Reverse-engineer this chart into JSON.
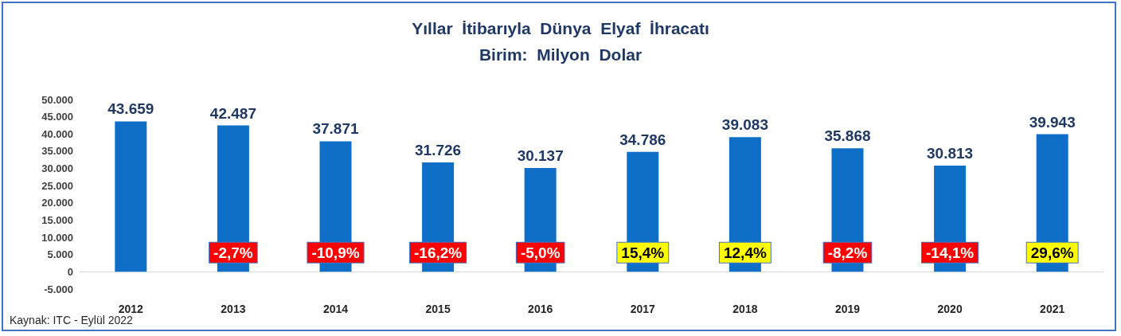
{
  "chart_data": {
    "type": "bar",
    "title": "Yıllar  İtibarıyla  Dünya  Elyaf  İhracatı",
    "subtitle": "Birim:  Milyon  Dolar",
    "categories": [
      "2012",
      "2013",
      "2014",
      "2015",
      "2016",
      "2017",
      "2018",
      "2019",
      "2020",
      "2021"
    ],
    "values": [
      43659,
      42487,
      37871,
      31726,
      30137,
      34786,
      39083,
      35868,
      30813,
      39943
    ],
    "value_labels": [
      "43.659",
      "42.487",
      "37.871",
      "31.726",
      "30.137",
      "34.786",
      "39.083",
      "35.868",
      "30.813",
      "39.943"
    ],
    "color": "#0f6fc6",
    "ylim": [
      -5000,
      50000
    ],
    "yticks": [
      {
        "value": -5000,
        "label": "-5.000"
      },
      {
        "value": 0,
        "label": "0"
      },
      {
        "value": 5000,
        "label": "5.000"
      },
      {
        "value": 10000,
        "label": "10.000"
      },
      {
        "value": 15000,
        "label": "15.000"
      },
      {
        "value": 20000,
        "label": "20.000"
      },
      {
        "value": 25000,
        "label": "25.000"
      },
      {
        "value": 30000,
        "label": "30.000"
      },
      {
        "value": 35000,
        "label": "35.000"
      },
      {
        "value": 40000,
        "label": "40.000"
      },
      {
        "value": 45000,
        "label": "45.000"
      },
      {
        "value": 50000,
        "label": "50.000"
      }
    ],
    "annotations": [
      "Kaynak: ITC - Eylül 2022",
      "-2,7%",
      "-10,9%",
      "-16,2%",
      "-5,0%",
      "15,4%",
      "12,4%",
      "-8,2%",
      "-14,1%",
      "29,6%"
    ]
  }
}
